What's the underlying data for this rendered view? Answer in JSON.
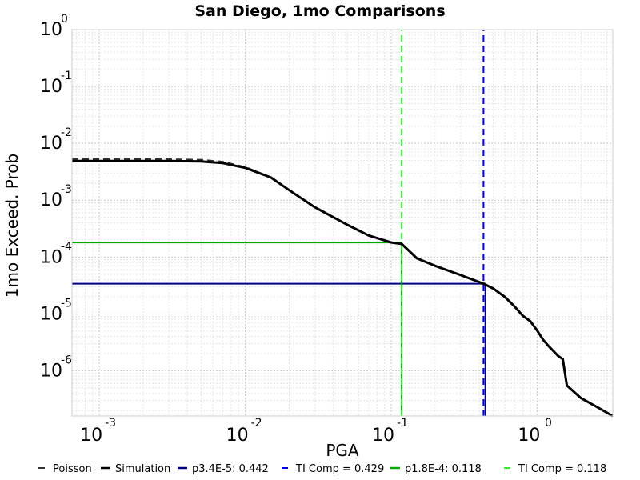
{
  "chart_data": {
    "type": "line",
    "title": "San Diego, 1mo Comparisons",
    "xlabel": "PGA",
    "ylabel": "1mo Exceed. Prob",
    "x_scale": "log",
    "y_scale": "log",
    "xlim": [
      0.00065,
      3.3
    ],
    "ylim": [
      1.6e-07,
      1.0
    ],
    "grid": true,
    "legend_position": "bottom",
    "x_ticks": [
      {
        "value": 0.001,
        "base": "10",
        "exp": "-3"
      },
      {
        "value": 0.01,
        "base": "10",
        "exp": "-2"
      },
      {
        "value": 0.1,
        "base": "10",
        "exp": "-1"
      },
      {
        "value": 1,
        "base": "10",
        "exp": "0"
      }
    ],
    "y_ticks": [
      {
        "value": 1,
        "base": "10",
        "exp": "0"
      },
      {
        "value": 0.1,
        "base": "10",
        "exp": "-1"
      },
      {
        "value": 0.01,
        "base": "10",
        "exp": "-2"
      },
      {
        "value": 0.001,
        "base": "10",
        "exp": "-3"
      },
      {
        "value": 0.0001,
        "base": "10",
        "exp": "-4"
      },
      {
        "value": 1e-05,
        "base": "10",
        "exp": "-5"
      },
      {
        "value": 1e-06,
        "base": "10",
        "exp": "-6"
      }
    ],
    "series": [
      {
        "name": "Poisson",
        "color": "#333333",
        "dash": "dashed",
        "width": 2.5,
        "x": [
          0.00065,
          0.001,
          0.002,
          0.003,
          0.005,
          0.007,
          0.01,
          0.015,
          0.02,
          0.03,
          0.05,
          0.07,
          0.1,
          0.118,
          0.15,
          0.2,
          0.3,
          0.429,
          0.5,
          0.6,
          0.7,
          0.8,
          0.9,
          1.0,
          1.1,
          1.2,
          1.4,
          1.5,
          1.6,
          2.0,
          2.5,
          3.3
        ],
        "y": [
          0.0053,
          0.0053,
          0.0053,
          0.0052,
          0.0051,
          0.0047,
          0.0038,
          0.0025,
          0.0015,
          0.00075,
          0.00037,
          0.00024,
          0.00018,
          0.00017,
          9.5e-05,
          7e-05,
          4.8e-05,
          3.4e-05,
          2.8e-05,
          2e-05,
          1.35e-05,
          9.2e-06,
          7.4e-06,
          5.1e-06,
          3.5e-06,
          2.7e-06,
          1.8e-06,
          1.6e-06,
          5.5e-07,
          3.3e-07,
          2.4e-07,
          1.6e-07
        ]
      },
      {
        "name": "Simulation",
        "color": "#000000",
        "dash": "solid",
        "width": 3,
        "x": [
          0.00065,
          0.001,
          0.002,
          0.003,
          0.005,
          0.007,
          0.01,
          0.015,
          0.02,
          0.03,
          0.05,
          0.07,
          0.1,
          0.118,
          0.15,
          0.2,
          0.3,
          0.429,
          0.5,
          0.6,
          0.7,
          0.8,
          0.9,
          1.0,
          1.1,
          1.2,
          1.4,
          1.5,
          1.6,
          2.0,
          2.5,
          3.3
        ],
        "y": [
          0.0049,
          0.0049,
          0.0049,
          0.0049,
          0.0048,
          0.0045,
          0.0037,
          0.0025,
          0.0015,
          0.00075,
          0.00037,
          0.00024,
          0.00018,
          0.00017,
          9.5e-05,
          7e-05,
          4.8e-05,
          3.4e-05,
          2.8e-05,
          2e-05,
          1.35e-05,
          9.2e-06,
          7.4e-06,
          5.1e-06,
          3.5e-06,
          2.7e-06,
          1.8e-06,
          1.6e-06,
          5.5e-07,
          3.3e-07,
          2.4e-07,
          1.6e-07
        ]
      },
      {
        "name": "p3.4E-5: 0.442",
        "color": "#000080",
        "dash": "solid",
        "width": 2,
        "x": [
          0.00065,
          0.442,
          0.442
        ],
        "y": [
          3.4e-05,
          3.4e-05,
          1.6e-07
        ]
      },
      {
        "name": "TI Comp = 0.429",
        "color": "#0000dd",
        "dash": "dashed",
        "width": 2,
        "x": [
          0.429,
          0.429
        ],
        "y": [
          1.6e-07,
          1.0
        ]
      },
      {
        "name": "p1.8E-4: 0.118",
        "color": "#00aa00",
        "dash": "solid",
        "width": 2,
        "x": [
          0.00065,
          0.118,
          0.118
        ],
        "y": [
          0.00018,
          0.00018,
          1.6e-07
        ]
      },
      {
        "name": "TI Comp = 0.118",
        "color": "#33ee33",
        "dash": "dashed",
        "width": 2,
        "x": [
          0.118,
          0.118
        ],
        "y": [
          1.6e-07,
          1.0
        ]
      }
    ]
  }
}
